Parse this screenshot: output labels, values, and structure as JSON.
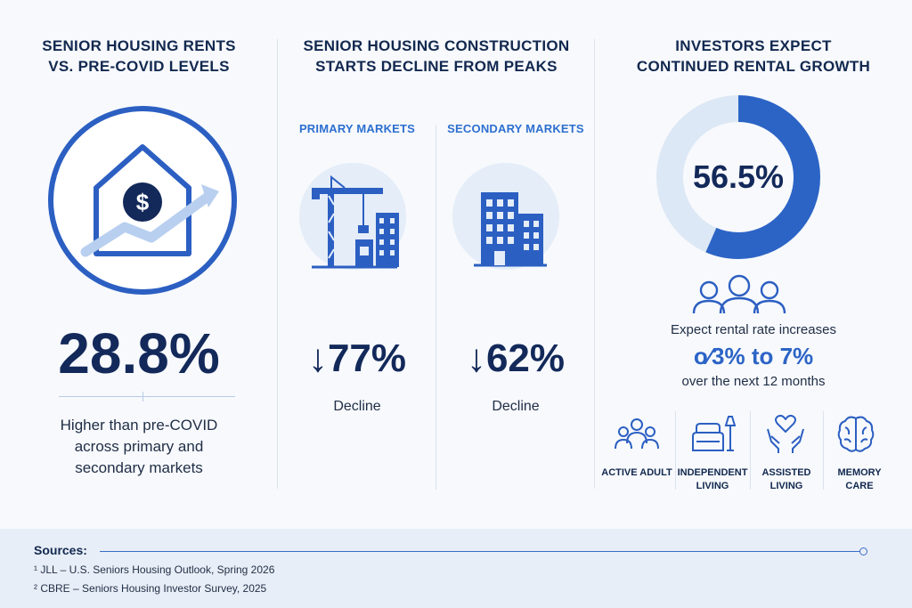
{
  "panel_rents": {
    "title_line1": "SENIOR HOUSING RENTS",
    "title_line2": "VS. PRE-COVID LEVELS",
    "icon": "house-dollar-growth-icon",
    "value": "28.8%",
    "caption_line1": "Higher than pre-COVID",
    "caption_line2": "across primary and",
    "caption_line3": "secondary markets"
  },
  "panel_construction": {
    "title_line1": "SENIOR HOUSING CONSTRUCTION",
    "title_line2": "STARTS DECLINE FROM PEAKS",
    "primary": {
      "label": "PRIMARY MARKETS",
      "icon": "construction-crane-icon",
      "arrow": "↓",
      "value": "77%",
      "caption": "Decline"
    },
    "secondary": {
      "label": "SECONDARY MARKETS",
      "icon": "buildings-icon",
      "arrow": "↓",
      "value": "62%",
      "caption": "Decline"
    }
  },
  "panel_investors": {
    "title_line1": "INVESTORS EXPECT",
    "title_line2": "CONTINUED RENTAL GROWTH",
    "donut_value": "56.5%",
    "donut_fraction": 0.565,
    "people_icon": "people-group-icon",
    "text_line1": "Expect rental rate increases",
    "range": "o⁄3% to 7%",
    "text_line3": "over the next 12 months",
    "categories": [
      {
        "icon": "active-adult-icon",
        "label_line1": "ACTIVE ADULT",
        "label_line2": ""
      },
      {
        "icon": "independent-living-icon",
        "label_line1": "INDEPENDENT",
        "label_line2": "LIVING"
      },
      {
        "icon": "assisted-living-icon",
        "label_line1": "ASSISTED",
        "label_line2": "LIVING"
      },
      {
        "icon": "memory-care-icon",
        "label_line1": "MEMORY",
        "label_line2": "CARE"
      }
    ]
  },
  "sources": {
    "label": "Sources:",
    "items": [
      "¹ JLL – U.S. Seniors Housing Outlook, Spring 2026",
      "² CBRE – Seniors Housing Investor Survey, 2025"
    ]
  },
  "colors": {
    "accent": "#2c64c6",
    "accent_light": "#dde8f6",
    "navy": "#13295a",
    "background": "#f7f9fc"
  }
}
